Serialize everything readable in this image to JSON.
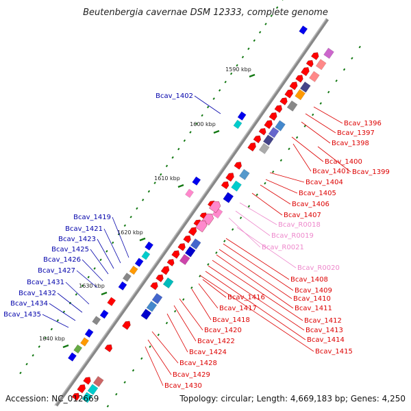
{
  "title": "Beutenbergia cavernae DSM 12333, complete genome",
  "accession": "Accession: NC_012669",
  "topology": "Topology: circular; Length: 4,669,183 bp; Genes: 4,250",
  "colors": {
    "forward": "#ff0000",
    "reverse": "#0000ff",
    "cds": "#ff0000",
    "rna": "#ff88cc",
    "label_left": "#0000aa",
    "label_right": "#dd0000",
    "label_rna": "#ee88cc",
    "tick": "#117711",
    "backbone": "#888888"
  },
  "ticks": [
    {
      "label": "1590 kbp"
    },
    {
      "label": "1600 kbp"
    },
    {
      "label": "1610 kbp"
    },
    {
      "label": "1620 kbp"
    },
    {
      "label": "1630 kbp"
    },
    {
      "label": "1640 kbp"
    }
  ],
  "left_labels": [
    {
      "text": "Bcav_1402"
    },
    {
      "text": "Bcav_1419"
    },
    {
      "text": "Bcav_1421"
    },
    {
      "text": "Bcav_1423"
    },
    {
      "text": "Bcav_1425"
    },
    {
      "text": "Bcav_1426"
    },
    {
      "text": "Bcav_1427"
    },
    {
      "text": "Bcav_1431"
    },
    {
      "text": "Bcav_1432"
    },
    {
      "text": "Bcav_1434"
    },
    {
      "text": "Bcav_1435"
    }
  ],
  "right_labels": [
    {
      "text": "Bcav_1396",
      "kind": "cds"
    },
    {
      "text": "Bcav_1397",
      "kind": "cds"
    },
    {
      "text": "Bcav_1398",
      "kind": "cds"
    },
    {
      "text": "Bcav_1400",
      "kind": "cds"
    },
    {
      "text": "Bcav_1401",
      "kind": "cds"
    },
    {
      "text": "Bcav_1399",
      "kind": "cds"
    },
    {
      "text": "Bcav_1404",
      "kind": "cds"
    },
    {
      "text": "Bcav_1405",
      "kind": "cds"
    },
    {
      "text": "Bcav_1406",
      "kind": "cds"
    },
    {
      "text": "Bcav_1407",
      "kind": "cds"
    },
    {
      "text": "Bcav_R0018",
      "kind": "rna"
    },
    {
      "text": "Bcav_R0019",
      "kind": "rna"
    },
    {
      "text": "Bcav_R0021",
      "kind": "rna"
    },
    {
      "text": "Bcav_R0020",
      "kind": "rna"
    },
    {
      "text": "Bcav_1408",
      "kind": "cds"
    },
    {
      "text": "Bcav_1409",
      "kind": "cds"
    },
    {
      "text": "Bcav_1410",
      "kind": "cds"
    },
    {
      "text": "Bcav_1411",
      "kind": "cds"
    },
    {
      "text": "Bcav_1412",
      "kind": "cds"
    },
    {
      "text": "Bcav_1413",
      "kind": "cds"
    },
    {
      "text": "Bcav_1414",
      "kind": "cds"
    },
    {
      "text": "Bcav_1415",
      "kind": "cds"
    },
    {
      "text": "Bcav_1416",
      "kind": "cds"
    },
    {
      "text": "Bcav_1417",
      "kind": "cds"
    },
    {
      "text": "Bcav_1418",
      "kind": "cds"
    },
    {
      "text": "Bcav_1420",
      "kind": "cds"
    },
    {
      "text": "Bcav_1422",
      "kind": "cds"
    },
    {
      "text": "Bcav_1424",
      "kind": "cds"
    },
    {
      "text": "Bcav_1428",
      "kind": "cds"
    },
    {
      "text": "Bcav_1429",
      "kind": "cds"
    },
    {
      "text": "Bcav_1430",
      "kind": "cds"
    }
  ]
}
